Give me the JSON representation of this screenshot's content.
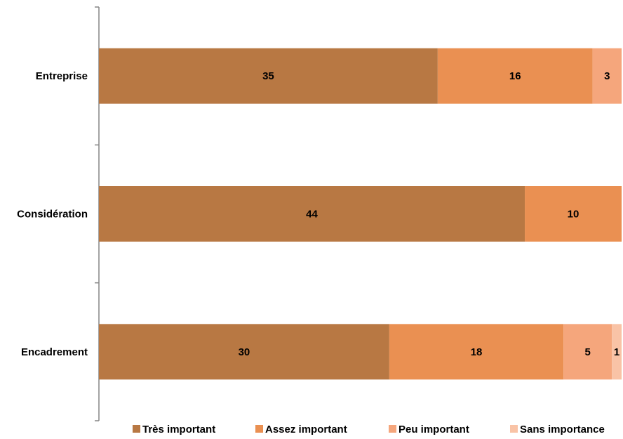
{
  "chart_data": {
    "type": "bar",
    "orientation": "horizontal",
    "stacked": true,
    "categories": [
      "Entreprise",
      "Considération",
      "Encadrement"
    ],
    "series": [
      {
        "name": "Très important",
        "values": [
          35,
          44,
          30
        ],
        "color": "#B87843"
      },
      {
        "name": "Assez important",
        "values": [
          16,
          10,
          18
        ],
        "color": "#EA9052"
      },
      {
        "name": "Peu important",
        "values": [
          3,
          0,
          5
        ],
        "color": "#F5A67C"
      },
      {
        "name": "Sans importance",
        "values": [
          0,
          0,
          1
        ],
        "color": "#F9C3A6"
      }
    ],
    "xlim": [
      0,
      54
    ],
    "grid": false,
    "legend_position": "bottom"
  }
}
